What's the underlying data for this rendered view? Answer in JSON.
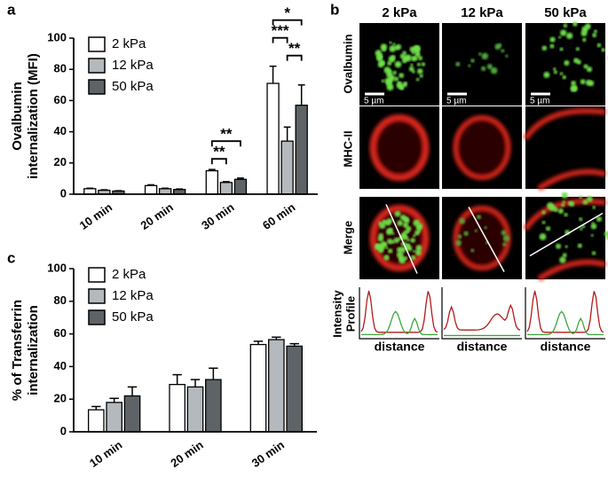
{
  "panel_labels": {
    "a": "a",
    "b": "b",
    "c": "c"
  },
  "chart_data": [
    {
      "type": "bar",
      "ylabel": [
        "Ovalbumin",
        "internalization (MFI)"
      ],
      "categories": [
        "10 min",
        "20 min",
        "30 min",
        "60 min"
      ],
      "series": [
        {
          "name": "2 kPa",
          "color": "#ffffff",
          "values": [
            3.5,
            5.5,
            15,
            71
          ],
          "errors": [
            0.3,
            0.5,
            0.8,
            11
          ]
        },
        {
          "name": "12 kPa",
          "color": "#b3b9bc",
          "values": [
            2.5,
            3.5,
            7.5,
            34
          ],
          "errors": [
            0.3,
            0.3,
            0.5,
            9
          ]
        },
        {
          "name": "50 kPa",
          "color": "#5d6366",
          "values": [
            2,
            3,
            9.5,
            57
          ],
          "errors": [
            0.2,
            0.3,
            0.8,
            13
          ]
        }
      ],
      "ylim": [
        0,
        100
      ],
      "yticks": [
        0,
        20,
        40,
        60,
        80,
        100
      ],
      "annotations": [
        {
          "text": "**",
          "category": 2,
          "from": 0,
          "to": 1
        },
        {
          "text": "**",
          "category": 2,
          "from": 0,
          "to": 2
        },
        {
          "text": "**",
          "category": 3,
          "from": 1,
          "to": 2
        },
        {
          "text": "***",
          "category": 3,
          "from": 0,
          "to": 1
        },
        {
          "text": "*",
          "category": 3,
          "from": 0,
          "to": 2
        }
      ]
    },
    {
      "type": "bar",
      "ylabel": [
        "% of Transferrin",
        "internalization"
      ],
      "categories": [
        "10 min",
        "20 min",
        "30 min"
      ],
      "series": [
        {
          "name": "2 kPa",
          "color": "#ffffff",
          "values": [
            13.5,
            29,
            53.5
          ],
          "errors": [
            2,
            6,
            2
          ]
        },
        {
          "name": "12 kPa",
          "color": "#b3b9bc",
          "values": [
            18,
            27.5,
            56.5
          ],
          "errors": [
            2.5,
            4.5,
            1.5
          ]
        },
        {
          "name": "50 kPa",
          "color": "#5d6366",
          "values": [
            22,
            32,
            52.5
          ],
          "errors": [
            5.5,
            7,
            1.5
          ]
        }
      ],
      "ylim": [
        0,
        100
      ],
      "yticks": [
        0,
        20,
        40,
        60,
        80,
        100
      ],
      "annotations": []
    }
  ],
  "panel_b": {
    "columns": [
      "2 kPa",
      "12 kPa",
      "50 kPa"
    ],
    "rows": [
      "Ovalbumin",
      "MHC-II",
      "Merge"
    ],
    "profile_label": [
      "Intensity",
      "Profile"
    ],
    "scale_bar": "5 µm",
    "profile_axis": "distance"
  }
}
